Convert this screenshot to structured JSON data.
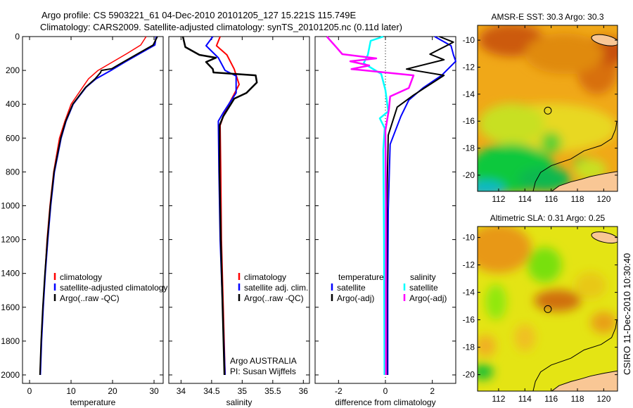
{
  "title_lines": [
    "Argo profile: CS 5903221_61 04-Dec-2010 20101205_127 15.221S 115.749E",
    "Climatology: CARS2009. Satellite-adjusted climatology: synTS_20101205.nc (0.11d later)"
  ],
  "footer_stamp": "CSIRO 11-Dec-2010 10:30:40",
  "colors": {
    "climatology": "#ff0000",
    "satellite": "#0000ff",
    "argo": "#000000",
    "sal_satellite": "#00ffff",
    "sal_argo": "#ff00ff",
    "land": "#f9c795"
  },
  "chart_data": [
    {
      "type": "line",
      "xlabel": "temperature",
      "xlim": [
        -1.7,
        32.2
      ],
      "ylim": [
        0,
        2050
      ],
      "y_reversed": true,
      "xticks": [
        "0",
        "10",
        "20",
        "30"
      ],
      "yticks": [
        "0",
        "200",
        "400",
        "600",
        "800",
        "1000",
        "1200",
        "1400",
        "1600",
        "1800",
        "2000"
      ],
      "legend": [
        "climatology",
        "satellite-adjusted climatology",
        "Argo(..raw -QC)"
      ],
      "series": [
        {
          "name": "climatology",
          "color": "#ff0000",
          "points": [
            [
              0,
              28.1
            ],
            [
              50,
              26.8
            ],
            [
              100,
              23.5
            ],
            [
              150,
              20.0
            ],
            [
              200,
              16.5
            ],
            [
              250,
              14.2
            ],
            [
              300,
              12.8
            ],
            [
              400,
              10.0
            ],
            [
              500,
              8.5
            ],
            [
              600,
              7.2
            ],
            [
              800,
              5.8
            ],
            [
              1000,
              4.9
            ],
            [
              1200,
              4.2
            ],
            [
              1400,
              3.7
            ],
            [
              1600,
              3.2
            ],
            [
              1800,
              2.8
            ],
            [
              2000,
              2.5
            ]
          ]
        },
        {
          "name": "satellite-adjusted climatology",
          "color": "#0000ff",
          "points": [
            [
              0,
              30.5
            ],
            [
              50,
              30.2
            ],
            [
              100,
              26.6
            ],
            [
              150,
              23.0
            ],
            [
              200,
              19.6
            ],
            [
              250,
              16.0
            ],
            [
              300,
              13.6
            ],
            [
              400,
              10.5
            ],
            [
              500,
              8.8
            ],
            [
              600,
              7.6
            ],
            [
              800,
              6.0
            ],
            [
              1000,
              5.1
            ],
            [
              1200,
              4.4
            ],
            [
              1400,
              3.8
            ],
            [
              1600,
              3.3
            ],
            [
              1800,
              2.9
            ],
            [
              2000,
              2.6
            ]
          ]
        },
        {
          "name": "Argo(..raw -QC)",
          "color": "#000000",
          "points": [
            [
              0,
              30.8
            ],
            [
              50,
              29.8
            ],
            [
              100,
              26.2
            ],
            [
              150,
              22.6
            ],
            [
              190,
              19.8
            ],
            [
              200,
              17.3
            ],
            [
              213,
              17.1
            ],
            [
              250,
              15.8
            ],
            [
              300,
              13.5
            ],
            [
              400,
              10.4
            ],
            [
              500,
              8.7
            ],
            [
              600,
              7.5
            ],
            [
              800,
              5.9
            ],
            [
              1000,
              5.0
            ],
            [
              1200,
              4.3
            ],
            [
              1400,
              3.7
            ],
            [
              1600,
              3.2
            ],
            [
              1800,
              2.8
            ],
            [
              2000,
              2.5
            ]
          ]
        }
      ]
    },
    {
      "type": "line",
      "xlabel": "salinity",
      "xlim": [
        33.8,
        36.1
      ],
      "ylim": [
        0,
        2050
      ],
      "y_reversed": true,
      "xticks": [
        "34",
        "34.5",
        "35",
        "35.5",
        "36"
      ],
      "legend": [
        "climatology",
        "satellite adj. clim.",
        "Argo(..raw -QC)"
      ],
      "annotation": [
        "Argo AUSTRALIA",
        "PI: Susan Wijffels"
      ],
      "series": [
        {
          "name": "climatology",
          "color": "#ff0000",
          "points": [
            [
              0,
              34.64
            ],
            [
              54,
              34.58
            ],
            [
              108,
              34.75
            ],
            [
              192,
              34.87
            ],
            [
              283,
              34.95
            ],
            [
              346,
              34.86
            ],
            [
              442,
              34.72
            ],
            [
              525,
              34.64
            ],
            [
              800,
              34.65
            ],
            [
              1200,
              34.66
            ],
            [
              1600,
              34.69
            ],
            [
              2000,
              34.72
            ]
          ]
        },
        {
          "name": "satellite adj. clim.",
          "color": "#0000ff",
          "points": [
            [
              0,
              34.52
            ],
            [
              54,
              34.41
            ],
            [
              125,
              34.61
            ],
            [
              200,
              34.72
            ],
            [
              233,
              34.9
            ],
            [
              333,
              34.9
            ],
            [
              450,
              34.69
            ],
            [
              500,
              34.61
            ],
            [
              800,
              34.62
            ],
            [
              1200,
              34.64
            ],
            [
              1600,
              34.68
            ],
            [
              2000,
              34.72
            ]
          ]
        },
        {
          "name": "Argo(..raw -QC)",
          "color": "#000000",
          "points": [
            [
              0,
              34.03
            ],
            [
              62,
              34.07
            ],
            [
              108,
              34.3
            ],
            [
              125,
              34.57
            ],
            [
              150,
              34.41
            ],
            [
              192,
              34.52
            ],
            [
              212,
              34.53
            ],
            [
              229,
              35.22
            ],
            [
              271,
              35.24
            ],
            [
              333,
              35.07
            ],
            [
              367,
              34.87
            ],
            [
              471,
              34.69
            ],
            [
              525,
              34.63
            ],
            [
              800,
              34.63
            ],
            [
              1200,
              34.65
            ],
            [
              1600,
              34.68
            ],
            [
              2000,
              34.71
            ]
          ]
        }
      ]
    },
    {
      "type": "line",
      "xlabel": "difference from climatology",
      "xlim": [
        -3.0,
        3.0
      ],
      "ylim": [
        0,
        2050
      ],
      "y_reversed": true,
      "xticks": [
        "-2",
        "0",
        "2"
      ],
      "legend_headers": [
        "temperature",
        "salinity"
      ],
      "legend": [
        "satellite",
        "Argo(-adj)",
        "satellite",
        "Argo(-adj)"
      ],
      "series": [
        {
          "name": "temperature satellite",
          "color": "#0000ff",
          "points": [
            [
              0,
              2.1
            ],
            [
              54,
              2.8
            ],
            [
              108,
              2.9
            ],
            [
              146,
              3.0
            ],
            [
              229,
              2.4
            ],
            [
              304,
              1.6
            ],
            [
              375,
              1.0
            ],
            [
              471,
              0.66
            ],
            [
              637,
              0.2
            ],
            [
              1025,
              0.12
            ],
            [
              1500,
              0.1
            ],
            [
              2000,
              0.1
            ]
          ]
        },
        {
          "name": "temperature Argo(-adj)",
          "color": "#000000",
          "points": [
            [
              0,
              2.3
            ],
            [
              33,
              2.9
            ],
            [
              104,
              1.9
            ],
            [
              137,
              2.5
            ],
            [
              192,
              0.9
            ],
            [
              229,
              2.5
            ],
            [
              346,
              1.2
            ],
            [
              417,
              0.5
            ],
            [
              583,
              0.12
            ],
            [
              1000,
              0.06
            ],
            [
              2000,
              0.05
            ]
          ]
        },
        {
          "name": "salinity satellite",
          "color": "#00ffff",
          "points": [
            [
              0,
              -0.09
            ],
            [
              25,
              -0.63
            ],
            [
              108,
              -0.75
            ],
            [
              158,
              -0.93
            ],
            [
              221,
              -0.18
            ],
            [
              317,
              0.0
            ],
            [
              442,
              0.12
            ],
            [
              483,
              -0.24
            ],
            [
              542,
              -0.03
            ],
            [
              667,
              -0.09
            ],
            [
              1200,
              -0.06
            ],
            [
              2000,
              -0.04
            ]
          ]
        },
        {
          "name": "salinity Argo(-adj)",
          "color": "#ff00ff",
          "points": [
            [
              0,
              -2.5
            ],
            [
              62,
              -2.1
            ],
            [
              104,
              -1.84
            ],
            [
              129,
              -0.39
            ],
            [
              146,
              -1.5
            ],
            [
              171,
              -0.69
            ],
            [
              192,
              -1.45
            ],
            [
              229,
              1.2
            ],
            [
              304,
              1.0
            ],
            [
              354,
              0.2
            ],
            [
              429,
              0.15
            ],
            [
              554,
              0.0
            ],
            [
              1000,
              0.02
            ],
            [
              2000,
              0.02
            ]
          ]
        }
      ]
    },
    {
      "type": "heatmap",
      "title": "AMSR-E SST: 30.3 Argo: 30.3",
      "xlim": [
        110.4,
        121.05
      ],
      "ylim": [
        -21.2,
        -8.9
      ],
      "xticks": [
        "112",
        "114",
        "116",
        "118",
        "120"
      ],
      "yticks": [
        "-10",
        "-12",
        "-14",
        "-16",
        "-18",
        "-20"
      ],
      "argo_position": [
        115.749,
        -15.221
      ]
    },
    {
      "type": "heatmap",
      "title": "Altimetric SLA: 0.31 Argo: 0.25",
      "xlim": [
        110.4,
        121.05
      ],
      "ylim": [
        -21.2,
        -9.2
      ],
      "xticks": [
        "112",
        "114",
        "116",
        "118",
        "120"
      ],
      "yticks": [
        "-10",
        "-12",
        "-14",
        "-16",
        "-18",
        "-20"
      ],
      "argo_position": [
        115.749,
        -15.221
      ]
    }
  ]
}
